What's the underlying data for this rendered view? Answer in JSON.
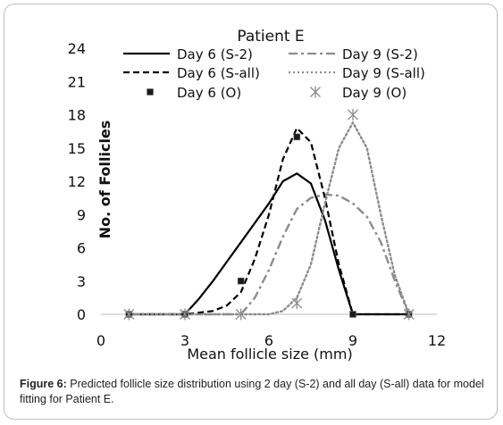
{
  "chart_data": {
    "type": "line",
    "title": "Patient E",
    "xlabel": "Mean follicle size (mm)",
    "ylabel": "No. of Follicles",
    "xlim": [
      0,
      12
    ],
    "ylim": [
      0,
      24
    ],
    "x_ticks": [
      "0",
      "3",
      "6",
      "9",
      "12"
    ],
    "y_ticks": [
      "0",
      "3",
      "6",
      "9",
      "12",
      "15",
      "18",
      "21",
      "24"
    ],
    "grid": false,
    "legend_position": "top",
    "series": [
      {
        "name": "Day 6 (S-2)",
        "style": "solid",
        "color": "#000000",
        "x": [
          1,
          3,
          3.5,
          4,
          5,
          6,
          6.5,
          7,
          7.5,
          8,
          8.5,
          9,
          10,
          11
        ],
        "y": [
          0,
          0,
          1.4,
          3,
          6.5,
          10,
          12,
          12.7,
          11.8,
          8.5,
          4,
          0,
          0,
          0
        ]
      },
      {
        "name": "Day 9 (S-2)",
        "style": "dashdot",
        "color": "#8c8c8c",
        "x": [
          1,
          3,
          5,
          5.5,
          6,
          6.5,
          7,
          7.5,
          8,
          8.5,
          9,
          9.5,
          10,
          10.5,
          11
        ],
        "y": [
          0,
          0,
          0,
          1.5,
          4,
          7,
          9.5,
          10.5,
          10.8,
          10.7,
          10,
          8.8,
          6.5,
          3,
          0
        ]
      },
      {
        "name": "Day 6 (S-all)",
        "style": "dashed",
        "color": "#000000",
        "x": [
          1,
          3,
          4,
          4.5,
          5,
          5.5,
          6,
          6.5,
          7,
          7.5,
          8,
          8.5,
          9,
          10,
          11
        ],
        "y": [
          0,
          0,
          0.3,
          0.8,
          2,
          5,
          9,
          14,
          16.8,
          15.5,
          10.5,
          4.5,
          0,
          0,
          0
        ]
      },
      {
        "name": "Day 9 (S-all)",
        "style": "dotted",
        "color": "#8c8c8c",
        "x": [
          1,
          3,
          5,
          6,
          6.5,
          7,
          7.5,
          8,
          8.5,
          9,
          9.5,
          10,
          10.5,
          11
        ],
        "y": [
          0,
          0,
          0,
          0,
          0.3,
          1.5,
          4.5,
          10,
          15,
          17.3,
          15,
          9,
          3.5,
          0
        ]
      },
      {
        "name": "Day 6 (O)",
        "style": "square",
        "color": "#1a1a1a",
        "x": [
          1,
          3,
          5,
          7,
          9,
          11
        ],
        "y": [
          0,
          0,
          3,
          16,
          0,
          0
        ]
      },
      {
        "name": "Day 9 (O)",
        "style": "star",
        "color": "#8c8c8c",
        "x": [
          1,
          3,
          5,
          7,
          9,
          11
        ],
        "y": [
          0,
          0,
          0,
          1,
          18,
          0
        ]
      }
    ]
  },
  "caption": {
    "label": "Figure 6:",
    "text": " Predicted follicle size distribution using 2 day (S-2) and all day (S-all) data for model fitting for Patient E."
  }
}
